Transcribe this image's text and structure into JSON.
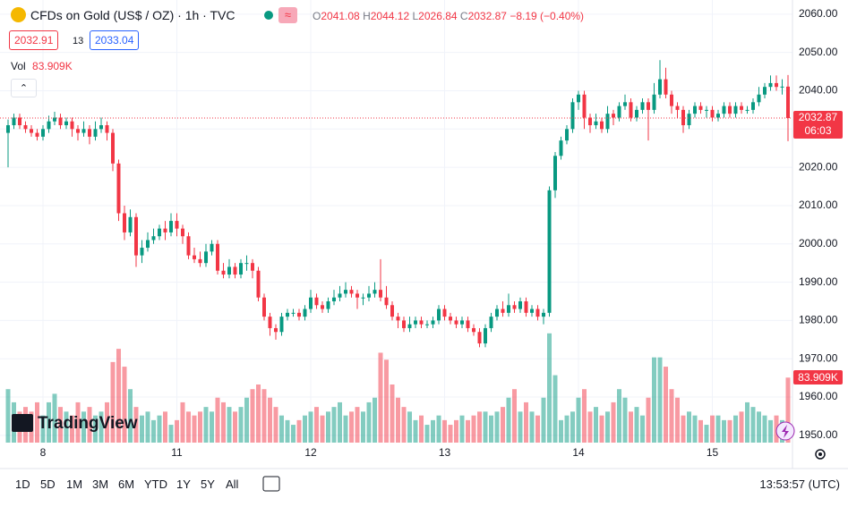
{
  "header": {
    "title": "CFDs on Gold (US$ / OZ) · 1h · TVC",
    "badge": "≈",
    "o_label": "O",
    "h_label": "H",
    "l_label": "L",
    "c_label": "C",
    "change": "−8.19 (−0.40%)",
    "bid": "2032.91",
    "spread": "13",
    "ask": "2033.04",
    "vol_label": "Vol"
  },
  "chart_data": {
    "type": "candlestick",
    "categories": [
      null,
      null,
      null,
      null,
      null,
      null,
      "8",
      null,
      null,
      null,
      null,
      null,
      null,
      null,
      null,
      null,
      null,
      null,
      null,
      null,
      null,
      null,
      null,
      null,
      null,
      null,
      null,
      null,
      null,
      "11",
      null,
      null,
      null,
      null,
      null,
      null,
      null,
      null,
      null,
      null,
      null,
      null,
      null,
      null,
      null,
      null,
      null,
      null,
      null,
      null,
      null,
      null,
      "12",
      null,
      null,
      null,
      null,
      null,
      null,
      null,
      null,
      null,
      null,
      null,
      null,
      null,
      null,
      null,
      null,
      null,
      null,
      null,
      null,
      null,
      null,
      "13",
      null,
      null,
      null,
      null,
      null,
      null,
      null,
      null,
      null,
      null,
      null,
      null,
      null,
      null,
      null,
      null,
      null,
      null,
      null,
      null,
      null,
      null,
      "14",
      null,
      null,
      null,
      null,
      null,
      null,
      null,
      null,
      null,
      null,
      null,
      null,
      null,
      null,
      null,
      null,
      null,
      null,
      null,
      null,
      null,
      null,
      "15",
      null,
      null,
      null,
      null,
      null,
      null,
      null,
      null,
      null,
      null,
      null,
      null,
      null
    ],
    "open": [
      2029,
      2031,
      2033,
      2031,
      2030,
      2029,
      2028,
      2030,
      2032,
      2033,
      2031,
      2032,
      2030,
      2029,
      2030,
      2028,
      2030,
      2031,
      2029,
      2021,
      2008,
      2003,
      2007,
      1997,
      1999,
      2001,
      2002,
      2004,
      2003,
      2006,
      2004,
      2002,
      1997,
      1996,
      1995,
      1998,
      2000,
      1993,
      1992,
      1994,
      1992,
      1995,
      1995,
      1993,
      1986,
      1981,
      1978,
      1977,
      1981,
      1982,
      1982,
      1981,
      1983,
      1986,
      1984,
      1983,
      1985,
      1986,
      1987,
      1988,
      1987,
      1986,
      1986,
      1987,
      1988,
      1986,
      1984,
      1981,
      1980,
      1978,
      1979,
      1980,
      1979,
      1979,
      1980,
      1983,
      1981,
      1980,
      1979,
      1980,
      1978,
      1977,
      1974,
      1978,
      1981,
      1983,
      1982,
      1984,
      1983,
      1985,
      1982,
      1983,
      1981,
      1982,
      2014,
      2023,
      2027,
      2030,
      2037,
      2039,
      2033,
      2031,
      2032,
      2030,
      2034,
      2033,
      2036,
      2037,
      2033,
      2035,
      2037,
      2035,
      2039,
      2043,
      2039,
      2036,
      2035,
      2031,
      2034,
      2036,
      2035,
      2035,
      2033,
      2034,
      2036,
      2034,
      2036,
      2035,
      2035,
      2037,
      2039,
      2041,
      2042,
      2041,
      2041.08
    ],
    "high": [
      2032.5,
      2034,
      2034,
      2032,
      2031,
      2030,
      2031,
      2033.5,
      2034.5,
      2034,
      2033,
      2033,
      2031,
      2032,
      2031,
      2032,
      2033,
      2032,
      2030,
      2022,
      2010,
      2009,
      2008,
      2001,
      2003,
      2004,
      2005,
      2006,
      2008,
      2008,
      2005,
      2003,
      1999,
      1998,
      2000,
      2001,
      2001,
      1995,
      1996,
      1995,
      1996,
      1997,
      1996,
      1994,
      1987,
      1982,
      1979,
      1982,
      1983,
      1983,
      1983,
      1984,
      1988,
      1987,
      1985,
      1986,
      1988,
      1989,
      1990,
      1989,
      1988,
      1987,
      1989,
      1990,
      1996,
      1989,
      1985,
      1982,
      1981,
      1981,
      1981,
      1981,
      1980,
      1981,
      1984,
      1984,
      1982,
      1981,
      1981,
      1981,
      1979,
      1978,
      1979,
      1982,
      1984,
      1985,
      1987,
      1985,
      1986,
      1986,
      1984,
      1984,
      1983,
      2015,
      2024,
      2028,
      2031,
      2038,
      2040,
      2040,
      2034,
      2034,
      2033,
      2036,
      2035,
      2037,
      2039,
      2038,
      2036,
      2038,
      2038,
      2042,
      2048,
      2046,
      2040,
      2037,
      2036,
      2035,
      2037,
      2037,
      2036,
      2036,
      2035,
      2037,
      2037,
      2037,
      2037,
      2036,
      2038,
      2041,
      2042,
      2044,
      2044,
      2043,
      2044.12
    ],
    "low": [
      2020,
      2030,
      2030,
      2029,
      2028,
      2027,
      2027,
      2029,
      2031,
      2030,
      2030,
      2028,
      2027,
      2028,
      2026,
      2027,
      2029,
      2027,
      2019,
      2006,
      2001,
      2002,
      1994,
      1995,
      1998,
      2000,
      2001,
      2001,
      2002,
      2002,
      2000,
      1996,
      1995,
      1994,
      1994,
      1997,
      1992,
      1991,
      1991,
      1991,
      1991,
      1993,
      1991,
      1985,
      1980,
      1976,
      1975,
      1976,
      1980,
      1981,
      1980,
      1980,
      1982,
      1983,
      1982,
      1982,
      1984,
      1985,
      1986,
      1986,
      1983,
      1984,
      1985,
      1986,
      1985,
      1983,
      1980,
      1978,
      1977,
      1977,
      1978,
      1978,
      1978,
      1978,
      1979,
      1980,
      1979,
      1978,
      1978,
      1977,
      1976,
      1973,
      1973,
      1977,
      1980,
      1981,
      1981,
      1982,
      1982,
      1981,
      1981,
      1980,
      1979,
      1981,
      2012,
      2022,
      2026,
      2029,
      2035,
      2030,
      2029,
      2030,
      2029,
      2029,
      2031,
      2032,
      2035,
      2032,
      2032,
      2034,
      2027,
      2034,
      2038,
      2038,
      2034,
      2033,
      2029,
      2030,
      2033,
      2034,
      2033,
      2032,
      2032,
      2033,
      2033,
      2033,
      2034,
      2034,
      2034,
      2036,
      2038,
      2040,
      2040,
      2039,
      2026.84
    ],
    "close": [
      2031,
      2033,
      2031,
      2030,
      2029,
      2028,
      2030,
      2032,
      2033,
      2031,
      2032,
      2030,
      2029,
      2030,
      2028,
      2030,
      2031,
      2029,
      2021,
      2008,
      2003,
      2007,
      1997,
      1999,
      2001,
      2002,
      2004,
      2003,
      2006,
      2004,
      2002,
      1997,
      1996,
      1995,
      1998,
      2000,
      1993,
      1992,
      1994,
      1992,
      1995,
      1995,
      1993,
      1986,
      1981,
      1978,
      1977,
      1981,
      1982,
      1982,
      1981,
      1983,
      1986,
      1984,
      1983,
      1985,
      1986,
      1987,
      1988,
      1987,
      1986,
      1986,
      1987,
      1988,
      1986,
      1984,
      1981,
      1980,
      1978,
      1979,
      1980,
      1979,
      1979,
      1980,
      1983,
      1981,
      1980,
      1979,
      1980,
      1978,
      1977,
      1974,
      1978,
      1981,
      1983,
      1982,
      1984,
      1983,
      1985,
      1982,
      1983,
      1981,
      1982,
      2014,
      2023,
      2027,
      2030,
      2037,
      2039,
      2033,
      2031,
      2032,
      2030,
      2034,
      2033,
      2036,
      2037,
      2033,
      2035,
      2037,
      2035,
      2039,
      2043,
      2039,
      2036,
      2035,
      2031,
      2034,
      2036,
      2035,
      2035,
      2033,
      2034,
      2036,
      2034,
      2036,
      2035,
      2035,
      2037,
      2039,
      2041,
      2042,
      2041,
      2041.08,
      2032.87
    ],
    "volume": [
      69000,
      52000,
      40000,
      46000,
      40000,
      52000,
      35000,
      52000,
      63000,
      46000,
      40000,
      35000,
      52000,
      40000,
      46000,
      35000,
      40000,
      52000,
      104000,
      121000,
      98000,
      69000,
      46000,
      35000,
      40000,
      29000,
      35000,
      40000,
      23000,
      29000,
      52000,
      40000,
      35000,
      40000,
      46000,
      40000,
      58000,
      52000,
      46000,
      40000,
      46000,
      58000,
      69000,
      75000,
      69000,
      58000,
      46000,
      35000,
      29000,
      23000,
      29000,
      35000,
      40000,
      46000,
      35000,
      40000,
      46000,
      52000,
      35000,
      40000,
      46000,
      40000,
      52000,
      58000,
      116000,
      107000,
      75000,
      58000,
      46000,
      40000,
      29000,
      35000,
      23000,
      29000,
      35000,
      29000,
      23000,
      29000,
      35000,
      29000,
      35000,
      40000,
      40000,
      35000,
      40000,
      46000,
      58000,
      69000,
      40000,
      52000,
      40000,
      35000,
      58000,
      141000,
      87000,
      29000,
      35000,
      40000,
      58000,
      69000,
      40000,
      46000,
      35000,
      40000,
      52000,
      69000,
      58000,
      40000,
      46000,
      35000,
      58000,
      110000,
      110000,
      98000,
      69000,
      58000,
      35000,
      40000,
      35000,
      29000,
      23000,
      35000,
      35000,
      29000,
      29000,
      35000,
      40000,
      52000,
      46000,
      40000,
      35000,
      29000,
      35000,
      29000,
      83909
    ],
    "last_volume_label": "83.909K",
    "countdown": "06:03",
    "ylim": [
      1948.1,
      2063.7
    ],
    "yticks": [
      {
        "value": 2060,
        "label": "2060.00"
      },
      {
        "value": 2050,
        "label": "2050.00"
      },
      {
        "value": 2040,
        "label": "2040.00"
      },
      {
        "value": 2030,
        "label": "2030.00"
      },
      {
        "value": 2020,
        "label": "2020.00"
      },
      {
        "value": 2010,
        "label": "2010.00"
      },
      {
        "value": 2000,
        "label": "2000.00"
      },
      {
        "value": 1990,
        "label": "1990.00"
      },
      {
        "value": 1980,
        "label": "1980.00"
      },
      {
        "value": 1970,
        "label": "1970.00"
      },
      {
        "value": 1960,
        "label": "1960.00"
      },
      {
        "value": 1950,
        "label": "1950.00"
      }
    ],
    "volume_ylim": [
      0,
      300000
    ],
    "up_color": "#089981",
    "down_color": "#f23645",
    "grid": true
  },
  "watermark": "TradingView",
  "toolbar": {
    "ranges": [
      "1D",
      "5D",
      "1M",
      "3M",
      "6M",
      "YTD",
      "1Y",
      "5Y",
      "All"
    ],
    "clock": "13:53:57 (UTC)"
  }
}
